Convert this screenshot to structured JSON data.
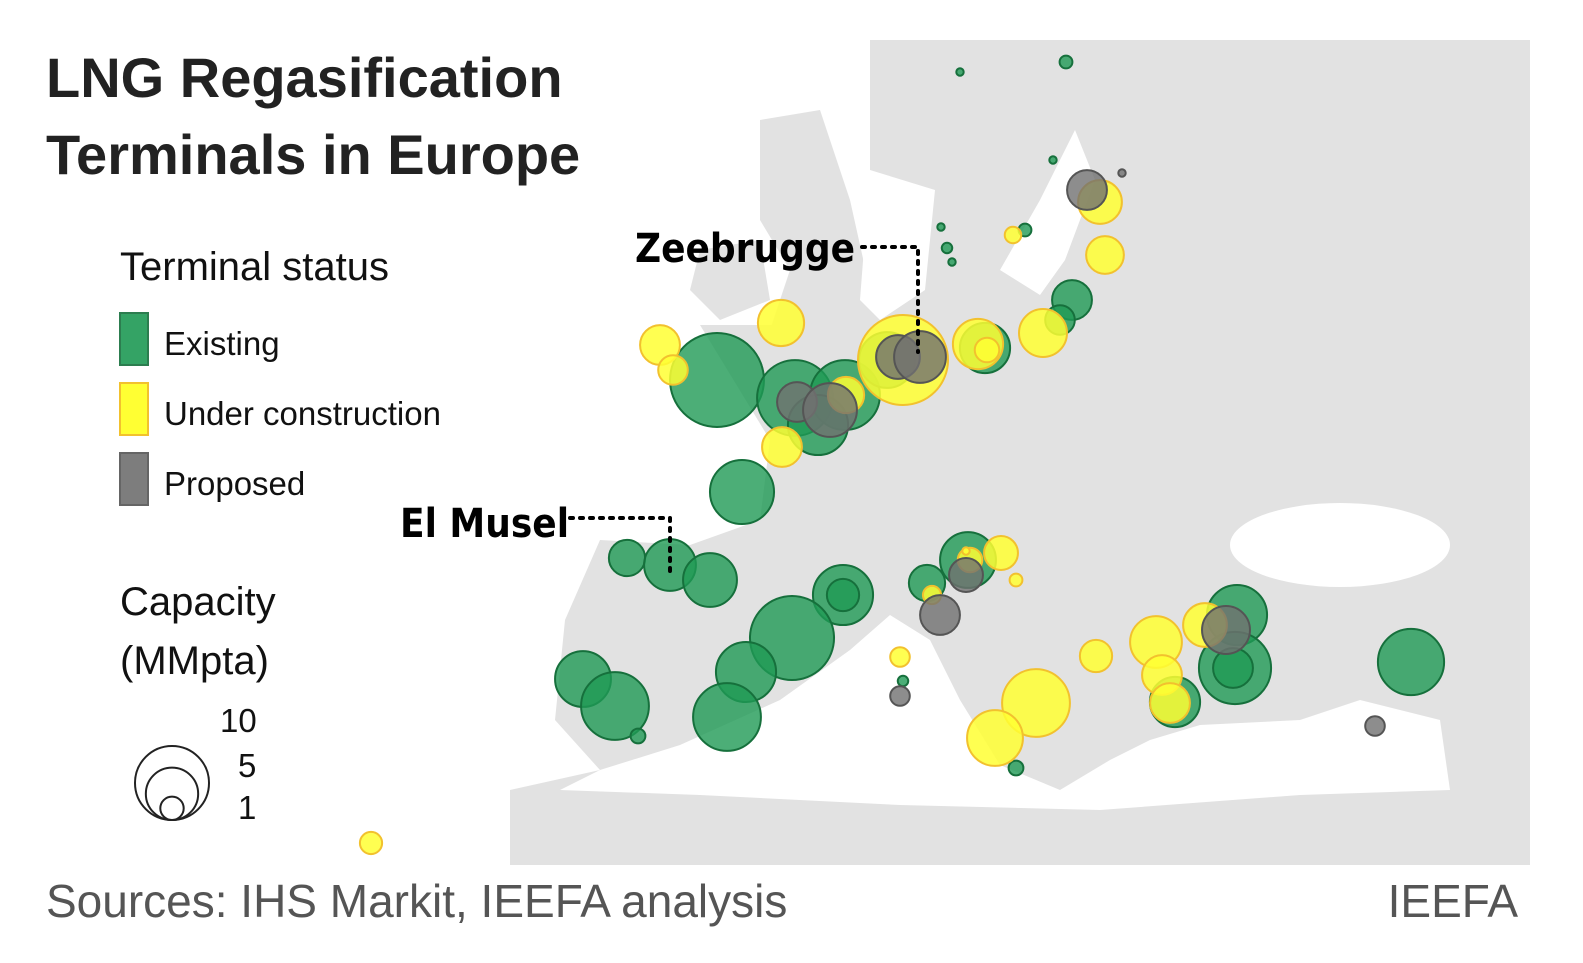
{
  "title_lines": [
    "LNG Regasification",
    "Terminals in Europe"
  ],
  "legend": {
    "title": "Terminal status",
    "statuses": [
      {
        "label": "Existing",
        "color": "#1f9a55",
        "capacities": [
          16.1,
          10.5,
          8.9,
          6.6,
          5.7,
          4.6,
          2.9,
          1.6,
          7.5,
          2.4,
          4.9,
          5.3,
          6.6,
          1.9,
          12.9,
          6.6,
          8.4,
          5.7,
          8.4,
          0.4,
          5.7,
          2.4,
          6.6,
          9.5,
          4.6,
          8.0,
          0.3,
          0.1,
          0.1,
          0.3,
          0.1,
          0.2,
          0.1,
          0.2,
          0.4,
          2.9
        ]
      },
      {
        "label": "Under construction",
        "color": "#ffff33",
        "capacities": [
          2.9,
          1.6,
          3.9,
          14.8,
          4.6,
          1.1,
          4.2,
          2.9,
          2.4,
          3.5,
          2.6,
          0.5,
          1.1,
          2.1,
          0.3,
          0.6,
          0.7,
          1.9,
          4.9,
          2.9,
          2.9,
          8.4,
          5.7,
          3.5,
          0.9,
          0.1
        ]
      },
      {
        "label": "Proposed",
        "color": "#707070",
        "capacities": [
          2.9,
          2.9,
          5.3,
          3.5,
          4.9,
          2.9,
          2.1,
          4.2,
          0.7,
          0.7,
          0.1
        ]
      }
    ]
  },
  "size_legend": {
    "title_lines": [
      "Capacity",
      "(MMpta)"
    ],
    "values": [
      10,
      5,
      1
    ]
  },
  "annotations": [
    "Zeebrugge",
    "El Musel"
  ],
  "source": "Sources: IHS Markit, IEEFA analysis",
  "credit": "IEEFA"
}
